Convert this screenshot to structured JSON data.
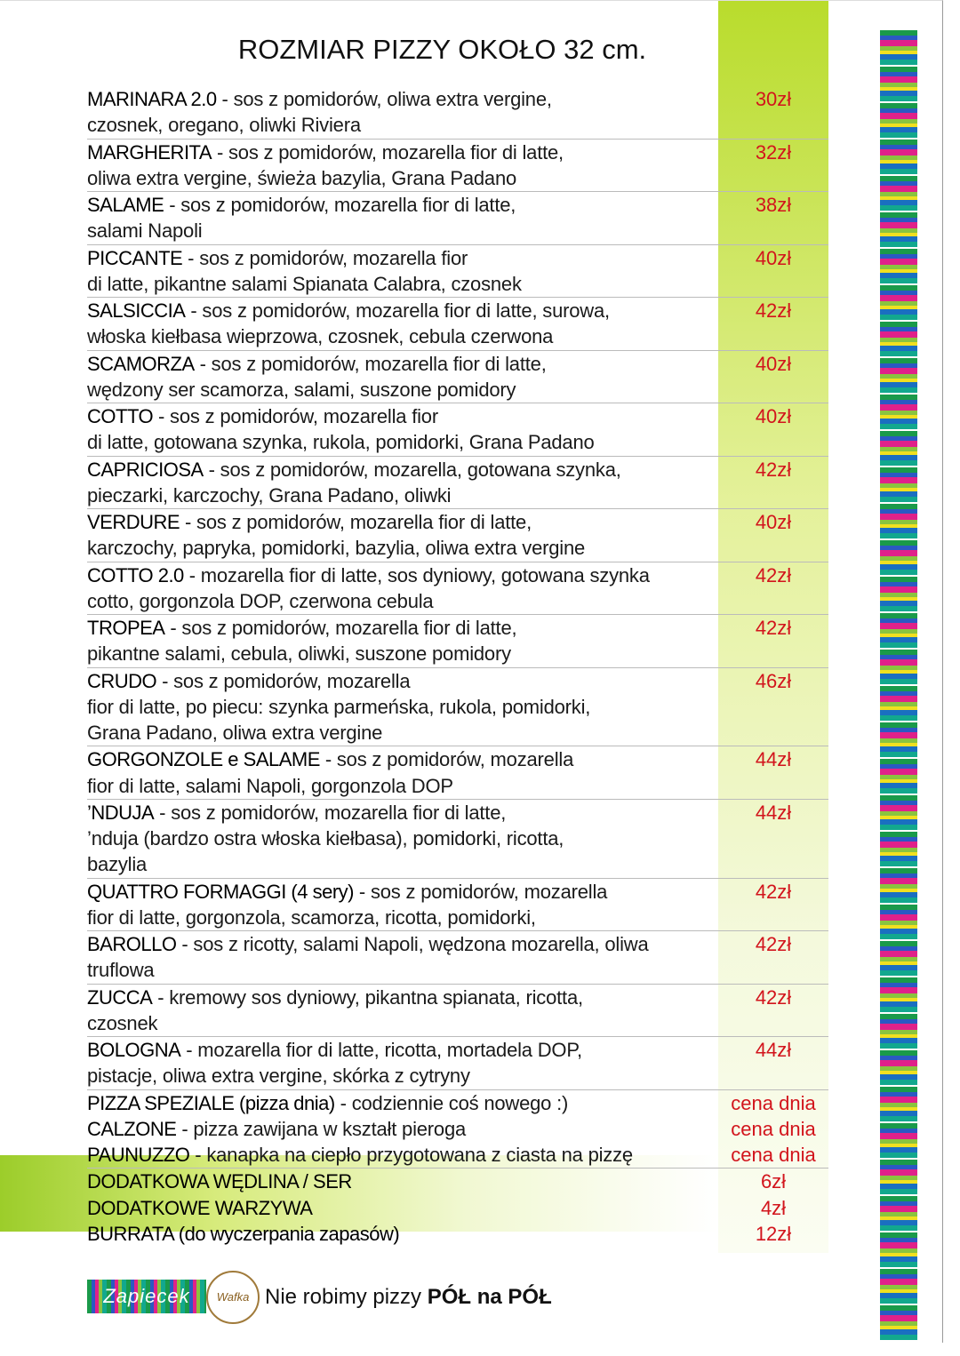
{
  "title": "ROZMIAR PIZZY OKOŁO 32 cm.",
  "items": [
    {
      "name": "MARINARA 2.0",
      "lines": [
        "- sos z pomidorów, oliwa extra vergine,",
        "czosnek, oregano, oliwki Riviera"
      ],
      "price": "30zł"
    },
    {
      "name": "MARGHERITA",
      "lines": [
        "- sos z pomidorów, mozarella fior di latte,",
        "oliwa extra vergine, świeża bazylia, Grana Padano"
      ],
      "price": "32zł"
    },
    {
      "name": "SALAME",
      "lines": [
        "- sos z pomidorów, mozarella fior di latte,",
        "salami Napoli"
      ],
      "price": "38zł"
    },
    {
      "name": "PICCANTE",
      "lines": [
        "- sos z pomidorów, mozarella fior",
        "di latte, pikantne salami Spianata Calabra, czosnek"
      ],
      "price": "40zł"
    },
    {
      "name": "SALSICCIA",
      "lines": [
        "- sos z pomidorów, mozarella fior di latte, surowa,",
        "włoska kiełbasa wieprzowa, czosnek, cebula czerwona"
      ],
      "price": "42zł"
    },
    {
      "name": "SCAMORZA",
      "lines": [
        "- sos z pomidorów, mozarella fior di latte,",
        "wędzony ser scamorza, salami, suszone pomidory"
      ],
      "price": "40zł"
    },
    {
      "name": "COTTO",
      "lines": [
        "- sos z pomidorów, mozarella fior",
        "di latte, gotowana szynka, rukola, pomidorki, Grana Padano"
      ],
      "price": "40zł"
    },
    {
      "name": "CAPRICIOSA",
      "lines": [
        "- sos z pomidorów, mozarella, gotowana szynka,",
        "pieczarki, karczochy, Grana Padano, oliwki"
      ],
      "price": "42zł"
    },
    {
      "name": "VERDURE",
      "lines": [
        "- sos z pomidorów, mozarella fior di latte,",
        "karczochy, papryka, pomidorki, bazylia, oliwa extra vergine"
      ],
      "price": "40zł"
    },
    {
      "name": "COTTO 2.0",
      "lines": [
        "- mozarella fior di latte, sos dyniowy, gotowana szynka",
        "cotto, gorgonzola DOP, czerwona cebula"
      ],
      "price": "42zł"
    },
    {
      "name": "TROPEA",
      "lines": [
        "- sos z pomidorów, mozarella fior di latte,",
        "pikantne salami, cebula, oliwki, suszone pomidory"
      ],
      "price": "42zł"
    },
    {
      "name": "CRUDO",
      "lines": [
        "- sos z pomidorów, mozarella",
        "fior di latte, po piecu: szynka parmeńska, rukola, pomidorki,",
        "Grana Padano, oliwa extra vergine"
      ],
      "price": "46zł"
    },
    {
      "name": "GORGONZOLE e SALAME",
      "lines": [
        "- sos z pomidorów, mozarella",
        "fior di latte, salami Napoli, gorgonzola DOP"
      ],
      "price": "44zł"
    },
    {
      "name": "’NDUJA",
      "lines": [
        "- sos z pomidorów, mozarella fior di latte,",
        "’nduja (bardzo ostra włoska kiełbasa), pomidorki, ricotta,",
        "bazylia"
      ],
      "price": "44zł"
    },
    {
      "name": "QUATTRO FORMAGGI (4 sery)",
      "lines": [
        "- sos z pomidorów, mozarella",
        "fior di latte, gorgonzola, scamorza, ricotta, pomidorki,"
      ],
      "price": "42zł"
    },
    {
      "name": "BAROLLO",
      "lines": [
        "- sos z ricotty, salami Napoli, wędzona mozarella, oliwa",
        "truflowa"
      ],
      "price": "42zł"
    },
    {
      "name": "ZUCCA",
      "lines": [
        "- kremowy sos dyniowy, pikantna spianata, ricotta,",
        "czosnek"
      ],
      "price": "42zł"
    },
    {
      "name": "BOLOGNA",
      "lines": [
        "- mozarella fior di latte, ricotta, mortadela DOP,",
        "pistacje, oliwa extra vergine, skórka z cytryny"
      ],
      "price": "44zł"
    },
    {
      "name": "PIZZA SPEZIALE (pizza dnia)",
      "lines": [
        "- codziennie coś nowego :)"
      ],
      "price": "cena dnia"
    },
    {
      "name": "CALZONE",
      "lines": [
        "- pizza zawijana w kształt pieroga"
      ],
      "price": "cena dnia"
    },
    {
      "name": "PAUNUZZO",
      "lines": [
        "- kanapka na ciepło przygotowana z ciasta na pizzę"
      ],
      "price": "cena dnia"
    }
  ],
  "extras": [
    {
      "name": "DODATKOWA WĘDLINA / SER",
      "price": "6zł"
    },
    {
      "name": "DODATKOWE WARZYWA",
      "price": "4zł"
    },
    {
      "name": "BURRATA (do wyczerpania zapasów)",
      "price": "12zł"
    }
  ],
  "footer": {
    "logo": "Zapiecek",
    "logo2": "Wafka",
    "note": "Nie robimy pizzy ",
    "note_bold": "PÓŁ na PÓŁ"
  }
}
